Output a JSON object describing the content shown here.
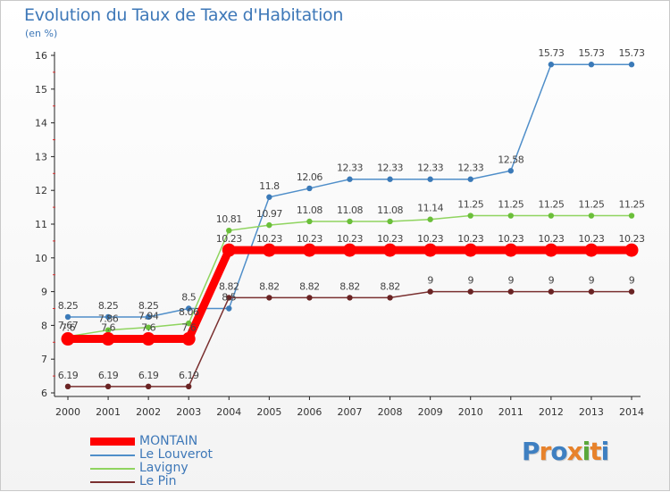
{
  "title": "Evolution du Taux de Taxe d'Habitation",
  "unit_label": "(en %)",
  "logo": {
    "text": "Proxiti",
    "letters": [
      "P",
      "r",
      "o",
      "x",
      "i",
      "t",
      "i"
    ],
    "colors": [
      "#3e7fc1",
      "#e7822b",
      "#3e7fc1",
      "#e7822b",
      "#5aa83a",
      "#e7822b",
      "#3e7fc1"
    ]
  },
  "chart_data": {
    "type": "line",
    "title": "Evolution du Taux de Taxe d'Habitation",
    "ylabel": "(en %)",
    "xlabel": "",
    "ylim": [
      6,
      16
    ],
    "yticks": [
      "6",
      "7",
      "8",
      "9",
      "10",
      "11",
      "12",
      "13",
      "14",
      "15",
      "16"
    ],
    "grid": false,
    "legend_position": "bottom-left",
    "x": [
      "2000",
      "2001",
      "2002",
      "2003",
      "2004",
      "2005",
      "2006",
      "2007",
      "2008",
      "2009",
      "2010",
      "2011",
      "2012",
      "2013",
      "2014"
    ],
    "series": [
      {
        "name": "Le Louverot",
        "color": "#4f8ec9",
        "marker": "#3b7ab8",
        "values": [
          8.25,
          8.25,
          8.25,
          8.5,
          8.5,
          11.8,
          12.06,
          12.33,
          12.33,
          12.33,
          12.33,
          12.58,
          15.73,
          15.73,
          15.73
        ],
        "labels": [
          "8.25",
          "8.25",
          "8.25",
          "8.5",
          "8.5",
          "11.8",
          "12.06",
          "12.33",
          "12.33",
          "12.33",
          "12.33",
          "12.58",
          "15.73",
          "15.73",
          "15.73"
        ]
      },
      {
        "name": "Lavigny",
        "color": "#8fd45f",
        "marker": "#6bbf3a",
        "values": [
          7.67,
          7.86,
          7.94,
          8.06,
          10.81,
          10.97,
          11.08,
          11.08,
          11.08,
          11.14,
          11.25,
          11.25,
          11.25,
          11.25,
          11.25
        ],
        "labels": [
          "7.67",
          "7.86",
          "7.94",
          "8.06",
          "10.81",
          "10.97",
          "11.08",
          "11.08",
          "11.08",
          "11.14",
          "11.25",
          "11.25",
          "11.25",
          "11.25",
          "11.25"
        ]
      },
      {
        "name": "Le Pin",
        "color": "#7a3030",
        "marker": "#6a2424",
        "values": [
          6.19,
          6.19,
          6.19,
          6.19,
          8.82,
          8.82,
          8.82,
          8.82,
          8.82,
          9,
          9,
          9,
          9,
          9,
          9
        ],
        "labels": [
          "6.19",
          "6.19",
          "6.19",
          "6.19",
          "8.82",
          "8.82",
          "8.82",
          "8.82",
          "8.82",
          "9",
          "9",
          "9",
          "9",
          "9",
          "9"
        ]
      },
      {
        "name": "MONTAIN",
        "color": "#ff0000",
        "marker": "#ff0000",
        "values": [
          7.6,
          7.6,
          7.6,
          7.6,
          10.23,
          10.23,
          10.23,
          10.23,
          10.23,
          10.23,
          10.23,
          10.23,
          10.23,
          10.23,
          10.23
        ],
        "labels": [
          "7.6",
          "7.6",
          "7.6",
          "7.6",
          "10.23",
          "10.23",
          "10.23",
          "10.23",
          "10.23",
          "10.23",
          "10.23",
          "10.23",
          "10.23",
          "10.23",
          "10.23"
        ]
      }
    ],
    "legend": [
      {
        "name": "MONTAIN",
        "color": "#ff0000"
      },
      {
        "name": "Le Louverot",
        "color": "#4f8ec9"
      },
      {
        "name": "Lavigny",
        "color": "#8fd45f"
      },
      {
        "name": "Le Pin",
        "color": "#7a3030"
      }
    ]
  }
}
